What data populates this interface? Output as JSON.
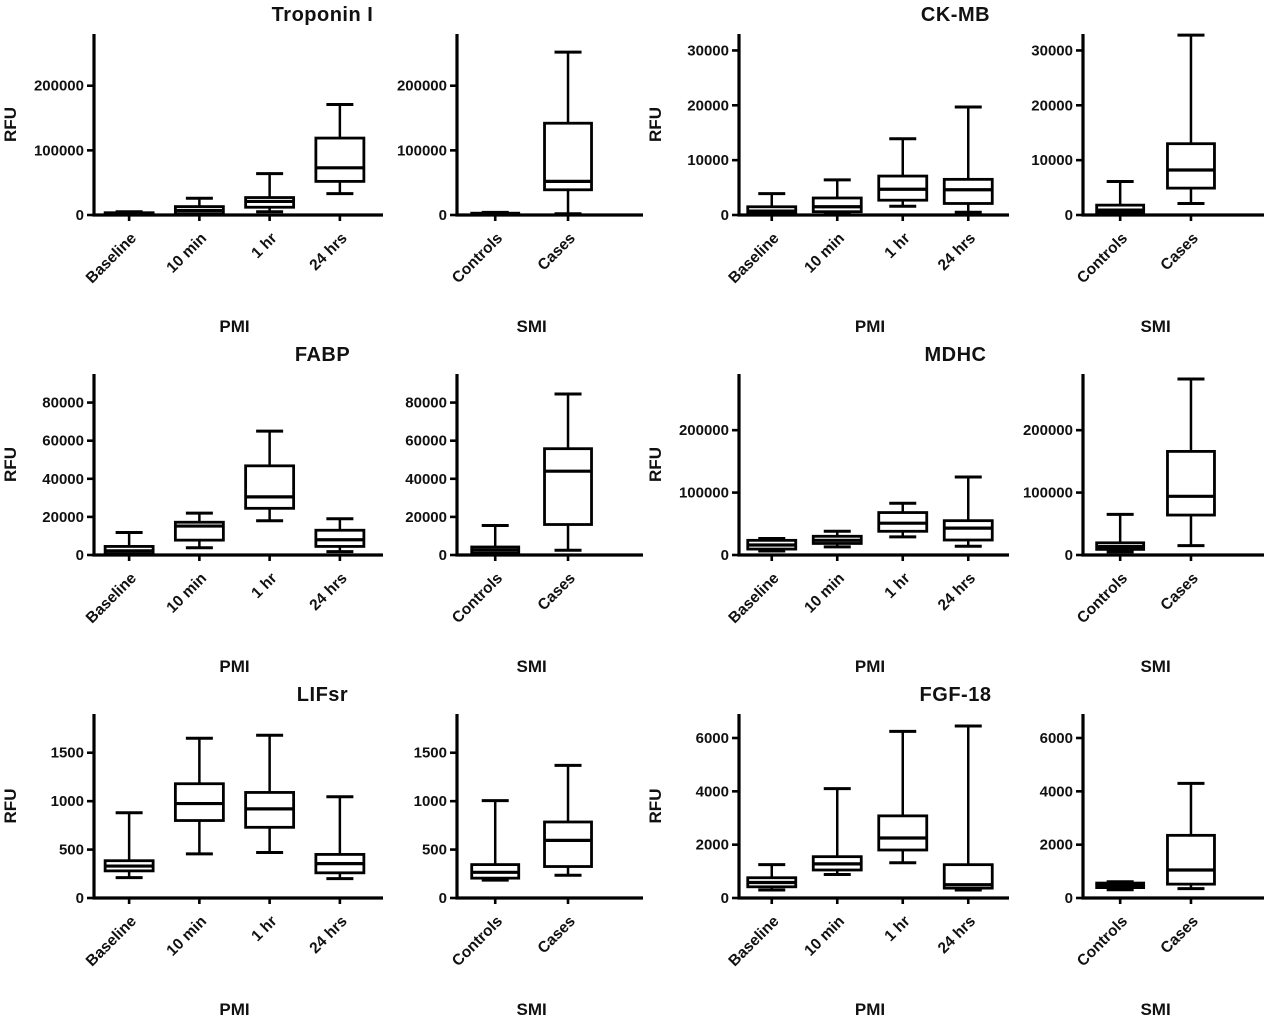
{
  "figure": {
    "y_axis_label": "RFU",
    "axis_color": "#000000",
    "box_fill": "#ffffff",
    "background": "#ffffff"
  },
  "chart_data": [
    {
      "type": "box",
      "title": "Troponin I",
      "subplots": [
        {
          "xlabel": "PMI",
          "ylabel": "RFU",
          "yticks": [
            0,
            100000,
            200000
          ],
          "ymax": 280000,
          "categories": [
            "Baseline",
            "10 min",
            "1 hr",
            "24 hrs"
          ],
          "boxes": [
            {
              "min": 200,
              "q1": 500,
              "median": 1500,
              "q3": 3500,
              "max": 5000
            },
            {
              "min": 1000,
              "q1": 2000,
              "median": 7000,
              "q3": 13000,
              "max": 26000
            },
            {
              "min": 5000,
              "q1": 12000,
              "median": 21000,
              "q3": 27000,
              "max": 64000
            },
            {
              "min": 33000,
              "q1": 52000,
              "median": 73000,
              "q3": 119000,
              "max": 171000
            }
          ]
        },
        {
          "xlabel": "SMI",
          "ylabel": "",
          "yticks": [
            0,
            100000,
            200000
          ],
          "ymax": 280000,
          "categories": [
            "Controls",
            "Cases"
          ],
          "boxes": [
            {
              "min": 300,
              "q1": 600,
              "median": 1200,
              "q3": 2800,
              "max": 4000
            },
            {
              "min": 2000,
              "q1": 39000,
              "median": 52000,
              "q3": 142000,
              "max": 252000
            }
          ]
        }
      ]
    },
    {
      "type": "box",
      "title": "CK-MB",
      "subplots": [
        {
          "xlabel": "PMI",
          "ylabel": "RFU",
          "yticks": [
            0,
            10000,
            20000,
            30000
          ],
          "ymax": 33000,
          "categories": [
            "Baseline",
            "10 min",
            "1 hr",
            "24 hrs"
          ],
          "boxes": [
            {
              "min": 100,
              "q1": 250,
              "median": 700,
              "q3": 1500,
              "max": 3900
            },
            {
              "min": 250,
              "q1": 600,
              "median": 1500,
              "q3": 3100,
              "max": 6400
            },
            {
              "min": 1600,
              "q1": 2700,
              "median": 4700,
              "q3": 7100,
              "max": 13900
            },
            {
              "min": 500,
              "q1": 2100,
              "median": 4600,
              "q3": 6500,
              "max": 19700
            }
          ]
        },
        {
          "xlabel": "SMI",
          "ylabel": "",
          "yticks": [
            0,
            10000,
            20000,
            30000
          ],
          "ymax": 33000,
          "categories": [
            "Controls",
            "Cases"
          ],
          "boxes": [
            {
              "min": 150,
              "q1": 400,
              "median": 900,
              "q3": 1800,
              "max": 6100
            },
            {
              "min": 2100,
              "q1": 4900,
              "median": 8200,
              "q3": 13000,
              "max": 32800
            }
          ]
        }
      ]
    },
    {
      "type": "box",
      "title": "FABP",
      "subplots": [
        {
          "xlabel": "PMI",
          "ylabel": "RFU",
          "yticks": [
            0,
            20000,
            40000,
            60000,
            80000
          ],
          "ymax": 95000,
          "categories": [
            "Baseline",
            "10 min",
            "1 hr",
            "24 hrs"
          ],
          "boxes": [
            {
              "min": 300,
              "q1": 700,
              "median": 2200,
              "q3": 4500,
              "max": 11800
            },
            {
              "min": 3800,
              "q1": 7800,
              "median": 15200,
              "q3": 17200,
              "max": 22000
            },
            {
              "min": 18000,
              "q1": 24500,
              "median": 30500,
              "q3": 46800,
              "max": 65000
            },
            {
              "min": 1800,
              "q1": 4500,
              "median": 8000,
              "q3": 13000,
              "max": 19000
            }
          ]
        },
        {
          "xlabel": "SMI",
          "ylabel": "",
          "yticks": [
            0,
            20000,
            40000,
            60000,
            80000
          ],
          "ymax": 95000,
          "categories": [
            "Controls",
            "Cases"
          ],
          "boxes": [
            {
              "min": 400,
              "q1": 1000,
              "median": 2600,
              "q3": 4200,
              "max": 15500
            },
            {
              "min": 2500,
              "q1": 16000,
              "median": 44000,
              "q3": 55800,
              "max": 84500
            }
          ]
        }
      ]
    },
    {
      "type": "box",
      "title": "MDHC",
      "subplots": [
        {
          "xlabel": "PMI",
          "ylabel": "RFU",
          "yticks": [
            0,
            100000,
            200000
          ],
          "ymax": 290000,
          "categories": [
            "Baseline",
            "10 min",
            "1 hr",
            "24 hrs"
          ],
          "boxes": [
            {
              "min": 6500,
              "q1": 9500,
              "median": 16000,
              "q3": 23500,
              "max": 26500
            },
            {
              "min": 13000,
              "q1": 18500,
              "median": 23500,
              "q3": 30000,
              "max": 38000
            },
            {
              "min": 29000,
              "q1": 38000,
              "median": 51000,
              "q3": 68000,
              "max": 83000
            },
            {
              "min": 14000,
              "q1": 24000,
              "median": 43000,
              "q3": 55000,
              "max": 125000
            }
          ]
        },
        {
          "xlabel": "SMI",
          "ylabel": "",
          "yticks": [
            0,
            100000,
            200000
          ],
          "ymax": 290000,
          "categories": [
            "Controls",
            "Cases"
          ],
          "boxes": [
            {
              "min": 5000,
              "q1": 9000,
              "median": 13500,
              "q3": 19500,
              "max": 65000
            },
            {
              "min": 15000,
              "q1": 64000,
              "median": 94000,
              "q3": 166000,
              "max": 282000
            }
          ]
        }
      ]
    },
    {
      "type": "box",
      "title": "LIFsr",
      "subplots": [
        {
          "xlabel": "PMI",
          "ylabel": "RFU",
          "yticks": [
            0,
            500,
            1000,
            1500
          ],
          "ymax": 1900,
          "categories": [
            "Baseline",
            "10 min",
            "1 hr",
            "24 hrs"
          ],
          "boxes": [
            {
              "min": 210,
              "q1": 280,
              "median": 330,
              "q3": 385,
              "max": 880
            },
            {
              "min": 455,
              "q1": 800,
              "median": 975,
              "q3": 1180,
              "max": 1650
            },
            {
              "min": 470,
              "q1": 730,
              "median": 920,
              "q3": 1090,
              "max": 1680
            },
            {
              "min": 200,
              "q1": 260,
              "median": 355,
              "q3": 450,
              "max": 1045
            }
          ]
        },
        {
          "xlabel": "SMI",
          "ylabel": "",
          "yticks": [
            0,
            500,
            1000,
            1500
          ],
          "ymax": 1900,
          "categories": [
            "Controls",
            "Cases"
          ],
          "boxes": [
            {
              "min": 185,
              "q1": 205,
              "median": 265,
              "q3": 345,
              "max": 1005
            },
            {
              "min": 235,
              "q1": 325,
              "median": 595,
              "q3": 785,
              "max": 1370
            }
          ]
        }
      ]
    },
    {
      "type": "box",
      "title": "FGF-18",
      "subplots": [
        {
          "xlabel": "PMI",
          "ylabel": "RFU",
          "yticks": [
            0,
            2000,
            4000,
            6000
          ],
          "ymax": 6900,
          "categories": [
            "Baseline",
            "10 min",
            "1 hr",
            "24 hrs"
          ],
          "boxes": [
            {
              "min": 300,
              "q1": 420,
              "median": 580,
              "q3": 760,
              "max": 1250
            },
            {
              "min": 880,
              "q1": 1050,
              "median": 1280,
              "q3": 1550,
              "max": 4100
            },
            {
              "min": 1320,
              "q1": 1800,
              "median": 2250,
              "q3": 3080,
              "max": 6250
            },
            {
              "min": 300,
              "q1": 370,
              "median": 500,
              "q3": 1250,
              "max": 6450
            }
          ]
        },
        {
          "xlabel": "SMI",
          "ylabel": "",
          "yticks": [
            0,
            2000,
            4000,
            6000
          ],
          "ymax": 6900,
          "categories": [
            "Controls",
            "Cases"
          ],
          "boxes": [
            {
              "min": 310,
              "q1": 390,
              "median": 470,
              "q3": 560,
              "max": 610
            },
            {
              "min": 350,
              "q1": 520,
              "median": 1050,
              "q3": 2350,
              "max": 4300
            }
          ]
        }
      ]
    }
  ]
}
